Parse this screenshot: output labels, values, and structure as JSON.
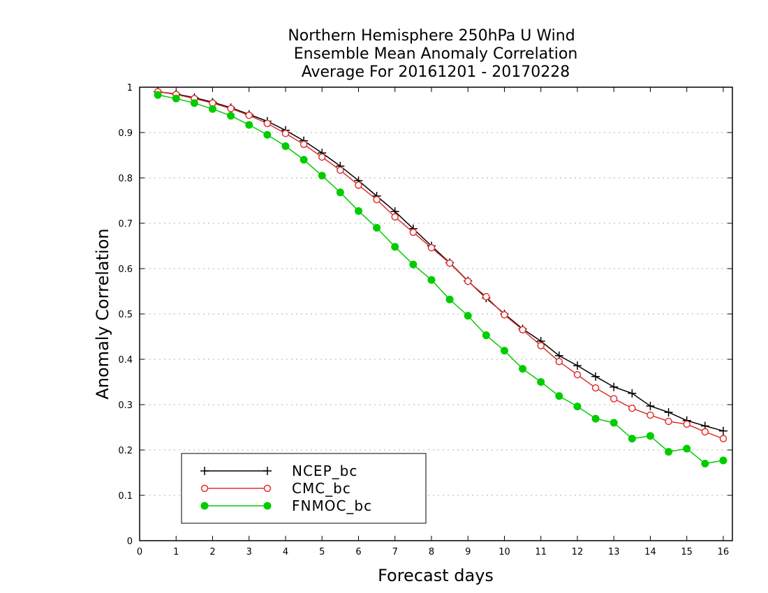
{
  "chart_data": {
    "type": "line",
    "title_lines": [
      "Northern Hemisphere 250hPa U Wind",
      "Ensemble Mean Anomaly Correlation",
      "Average For 20161201 - 20170228"
    ],
    "xlabel": "Forecast days",
    "ylabel": "Anomaly Correlation",
    "xlim": [
      0,
      16.25
    ],
    "ylim": [
      0,
      1
    ],
    "x_ticks": [
      "0",
      "1",
      "2",
      "3",
      "4",
      "5",
      "6",
      "7",
      "8",
      "9",
      "10",
      "11",
      "12",
      "13",
      "14",
      "15",
      "16"
    ],
    "y_ticks": [
      "0",
      "0.1",
      "0.2",
      "0.3",
      "0.4",
      "0.5",
      "0.6",
      "0.7",
      "0.8",
      "0.9",
      "1"
    ],
    "grid": true,
    "legend_position": "bottom-left",
    "x": [
      0.5,
      1,
      1.5,
      2,
      2.5,
      3,
      3.5,
      4,
      4.5,
      5,
      5.5,
      6,
      6.5,
      7,
      7.5,
      8,
      8.5,
      9,
      9.5,
      10,
      10.5,
      11,
      11.5,
      12,
      12.5,
      13,
      13.5,
      14,
      14.5,
      15,
      15.5,
      16
    ],
    "series": [
      {
        "name": "NCEP_bc",
        "color": "#000000",
        "marker": "plus",
        "values": [
          0.99,
          0.985,
          0.977,
          0.967,
          0.955,
          0.94,
          0.925,
          0.905,
          0.882,
          0.855,
          0.826,
          0.794,
          0.76,
          0.726,
          0.688,
          0.65,
          0.613,
          0.573,
          0.535,
          0.5,
          0.467,
          0.44,
          0.408,
          0.386,
          0.362,
          0.339,
          0.325,
          0.297,
          0.283,
          0.265,
          0.253,
          0.242
        ]
      },
      {
        "name": "CMC_bc",
        "color": "#e03030",
        "marker": "open-circle",
        "values": [
          0.99,
          0.984,
          0.975,
          0.965,
          0.953,
          0.938,
          0.92,
          0.898,
          0.874,
          0.846,
          0.817,
          0.784,
          0.752,
          0.714,
          0.68,
          0.646,
          0.612,
          0.572,
          0.538,
          0.498,
          0.465,
          0.43,
          0.395,
          0.366,
          0.337,
          0.313,
          0.292,
          0.277,
          0.263,
          0.257,
          0.24,
          0.225
        ]
      },
      {
        "name": "FNMOC_bc",
        "color": "#00cc00",
        "marker": "filled-circle",
        "values": [
          0.983,
          0.975,
          0.965,
          0.952,
          0.937,
          0.917,
          0.895,
          0.87,
          0.84,
          0.805,
          0.768,
          0.727,
          0.69,
          0.648,
          0.609,
          0.575,
          0.532,
          0.496,
          0.453,
          0.419,
          0.379,
          0.35,
          0.319,
          0.296,
          0.269,
          0.26,
          0.225,
          0.231,
          0.196,
          0.203,
          0.17,
          0.177
        ]
      }
    ]
  }
}
